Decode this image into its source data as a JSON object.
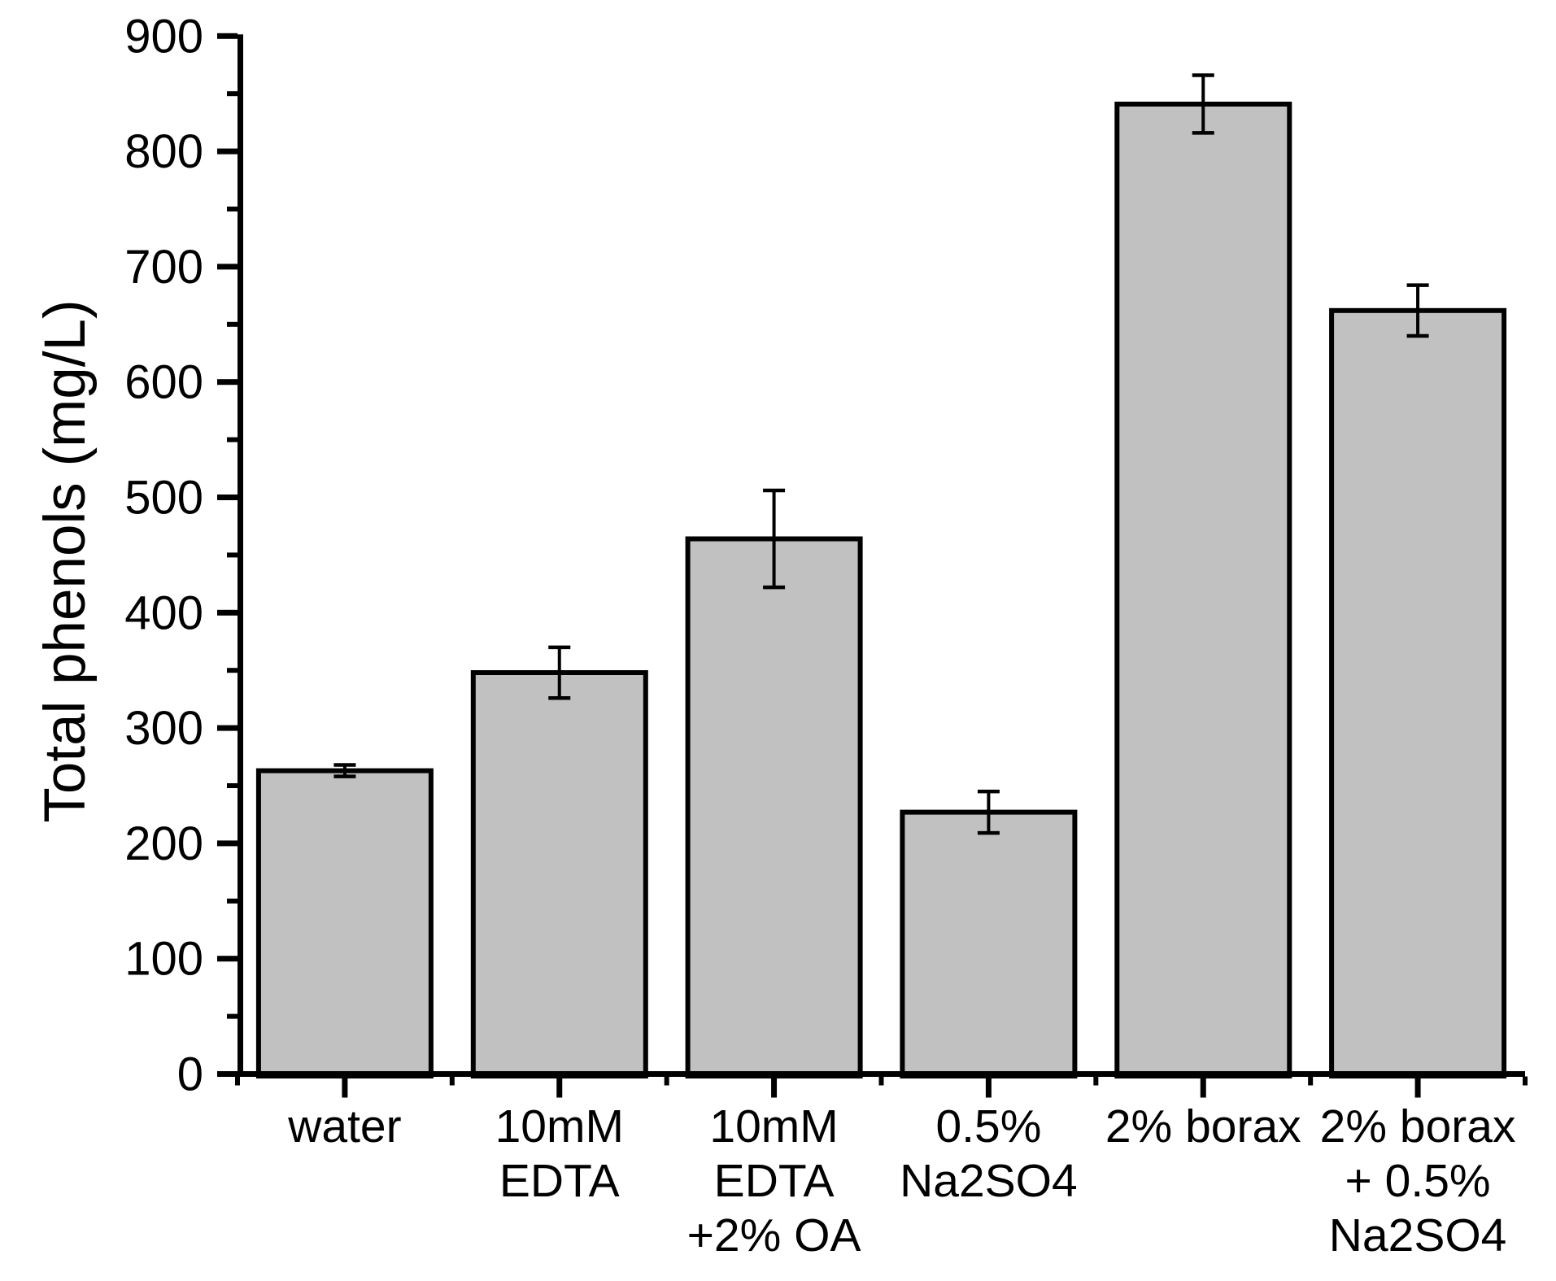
{
  "chart_data": {
    "type": "bar",
    "title": "",
    "xlabel": "",
    "ylabel": "Total phenols (mg/L)",
    "ylim": [
      0,
      900
    ],
    "ytick_major_step": 100,
    "ytick_minor_step": 50,
    "ytick_labels": [
      "0",
      "100",
      "200",
      "300",
      "400",
      "500",
      "600",
      "700",
      "800",
      "900"
    ],
    "grid": false,
    "legend": false,
    "categories": [
      "water",
      "10mM EDTA",
      "10mM EDTA +2% OA",
      "0.5% Na2SO4",
      "2% borax",
      "2% borax + 0.5% Na2SO4"
    ],
    "category_label_lines": [
      [
        "water"
      ],
      [
        "10mM",
        "EDTA"
      ],
      [
        "10mM",
        "EDTA",
        "+2% OA"
      ],
      [
        "0.5%",
        "Na2SO4"
      ],
      [
        "2% borax"
      ],
      [
        "2% borax",
        "+ 0.5%",
        "Na2SO4"
      ]
    ],
    "values": [
      263,
      348,
      464,
      227,
      841,
      662
    ],
    "errors": [
      5,
      22,
      42,
      18,
      25,
      22
    ],
    "error_bars": "plus-minus, capped",
    "colors": {
      "bar_fill": "#c1c1c1",
      "bar_stroke": "#000000",
      "axis": "#000000",
      "text": "#000000",
      "background": "#ffffff"
    }
  }
}
